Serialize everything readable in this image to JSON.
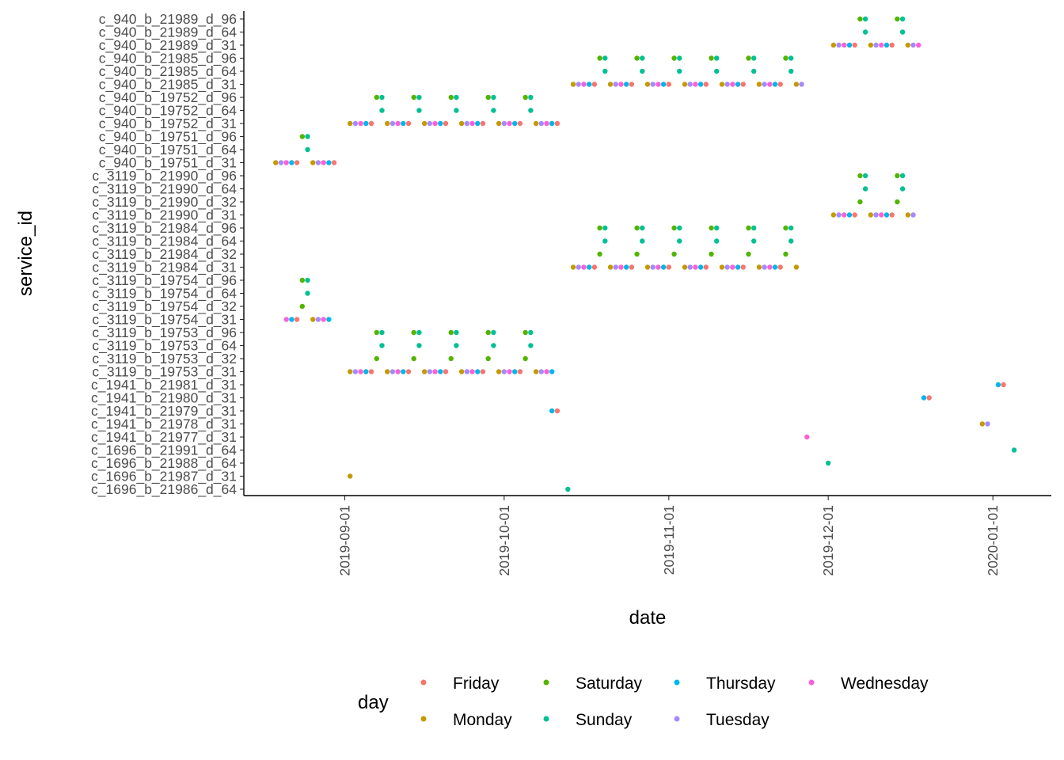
{
  "chart_data": {
    "type": "scatter",
    "xlabel": "date",
    "ylabel": "service_id",
    "x_range": [
      "2019-08-13",
      "2020-01-12"
    ],
    "x_ticks": [
      "2019-09-01",
      "2019-10-01",
      "2019-11-01",
      "2019-12-01",
      "2020-01-01"
    ],
    "grid": false,
    "legend": {
      "title": "day",
      "position": "bottom",
      "entries": [
        "Friday",
        "Monday",
        "Saturday",
        "Sunday",
        "Thursday",
        "Tuesday",
        "Wednesday"
      ]
    },
    "day_colors": {
      "Friday": "#F8766D",
      "Monday": "#C49A00",
      "Saturday": "#53B400",
      "Sunday": "#00C094",
      "Thursday": "#00B6EB",
      "Tuesday": "#A58AFF",
      "Wednesday": "#FB61D7"
    },
    "categories": [
      "c_940_b_21989_d_96",
      "c_940_b_21989_d_64",
      "c_940_b_21989_d_31",
      "c_940_b_21985_d_96",
      "c_940_b_21985_d_64",
      "c_940_b_21985_d_31",
      "c_940_b_19752_d_96",
      "c_940_b_19752_d_64",
      "c_940_b_19752_d_31",
      "c_940_b_19751_d_96",
      "c_940_b_19751_d_64",
      "c_940_b_19751_d_31",
      "c_3119_b_21990_d_96",
      "c_3119_b_21990_d_64",
      "c_3119_b_21990_d_32",
      "c_3119_b_21990_d_31",
      "c_3119_b_21984_d_96",
      "c_3119_b_21984_d_64",
      "c_3119_b_21984_d_32",
      "c_3119_b_21984_d_31",
      "c_3119_b_19754_d_96",
      "c_3119_b_19754_d_64",
      "c_3119_b_19754_d_32",
      "c_3119_b_19754_d_31",
      "c_3119_b_19753_d_96",
      "c_3119_b_19753_d_64",
      "c_3119_b_19753_d_32",
      "c_3119_b_19753_d_31",
      "c_1941_b_21981_d_31",
      "c_1941_b_21980_d_31",
      "c_1941_b_21979_d_31",
      "c_1941_b_21978_d_31",
      "c_1941_b_21977_d_31",
      "c_1696_b_21991_d_64",
      "c_1696_b_21988_d_64",
      "c_1696_b_21987_d_31",
      "c_1696_b_21986_d_64"
    ],
    "series": [
      {
        "service_id": "c_940_b_19751_d_31",
        "date_ranges": [
          [
            "2019-08-19",
            "2019-08-23"
          ],
          [
            "2019-08-26",
            "2019-08-30"
          ]
        ]
      },
      {
        "service_id": "c_940_b_19751_d_64",
        "date_ranges": [
          [
            "2019-08-25",
            "2019-08-25"
          ]
        ]
      },
      {
        "service_id": "c_940_b_19751_d_96",
        "date_ranges": [
          [
            "2019-08-24",
            "2019-08-25"
          ]
        ]
      },
      {
        "service_id": "c_940_b_19752_d_31",
        "date_ranges": [
          [
            "2019-09-02",
            "2019-09-06"
          ],
          [
            "2019-09-09",
            "2019-09-13"
          ],
          [
            "2019-09-16",
            "2019-09-20"
          ],
          [
            "2019-09-23",
            "2019-09-27"
          ],
          [
            "2019-09-30",
            "2019-10-04"
          ],
          [
            "2019-10-07",
            "2019-10-11"
          ]
        ]
      },
      {
        "service_id": "c_940_b_19752_d_64",
        "date_ranges": [
          [
            "2019-09-08",
            "2019-09-08"
          ],
          [
            "2019-09-15",
            "2019-09-15"
          ],
          [
            "2019-09-22",
            "2019-09-22"
          ],
          [
            "2019-09-29",
            "2019-09-29"
          ],
          [
            "2019-10-06",
            "2019-10-06"
          ]
        ]
      },
      {
        "service_id": "c_940_b_19752_d_96",
        "date_ranges": [
          [
            "2019-09-07",
            "2019-09-08"
          ],
          [
            "2019-09-14",
            "2019-09-15"
          ],
          [
            "2019-09-21",
            "2019-09-22"
          ],
          [
            "2019-09-28",
            "2019-09-29"
          ],
          [
            "2019-10-05",
            "2019-10-06"
          ]
        ]
      },
      {
        "service_id": "c_940_b_21985_d_31",
        "date_ranges": [
          [
            "2019-10-14",
            "2019-10-18"
          ],
          [
            "2019-10-21",
            "2019-10-25"
          ],
          [
            "2019-10-28",
            "2019-11-01"
          ],
          [
            "2019-11-04",
            "2019-11-08"
          ],
          [
            "2019-11-11",
            "2019-11-15"
          ],
          [
            "2019-11-18",
            "2019-11-22"
          ],
          [
            "2019-11-25",
            "2019-11-26"
          ]
        ]
      },
      {
        "service_id": "c_940_b_21985_d_64",
        "date_ranges": [
          [
            "2019-10-20",
            "2019-10-20"
          ],
          [
            "2019-10-27",
            "2019-10-27"
          ],
          [
            "2019-11-03",
            "2019-11-03"
          ],
          [
            "2019-11-10",
            "2019-11-10"
          ],
          [
            "2019-11-17",
            "2019-11-17"
          ],
          [
            "2019-11-24",
            "2019-11-24"
          ]
        ]
      },
      {
        "service_id": "c_940_b_21985_d_96",
        "date_ranges": [
          [
            "2019-10-19",
            "2019-10-20"
          ],
          [
            "2019-10-26",
            "2019-10-27"
          ],
          [
            "2019-11-02",
            "2019-11-03"
          ],
          [
            "2019-11-09",
            "2019-11-10"
          ],
          [
            "2019-11-16",
            "2019-11-17"
          ],
          [
            "2019-11-23",
            "2019-11-24"
          ]
        ]
      },
      {
        "service_id": "c_940_b_21989_d_31",
        "date_ranges": [
          [
            "2019-12-02",
            "2019-12-06"
          ],
          [
            "2019-12-09",
            "2019-12-13"
          ],
          [
            "2019-12-16",
            "2019-12-18"
          ]
        ]
      },
      {
        "service_id": "c_940_b_21989_d_64",
        "date_ranges": [
          [
            "2019-12-08",
            "2019-12-08"
          ],
          [
            "2019-12-15",
            "2019-12-15"
          ]
        ]
      },
      {
        "service_id": "c_940_b_21989_d_96",
        "date_ranges": [
          [
            "2019-12-07",
            "2019-12-08"
          ],
          [
            "2019-12-14",
            "2019-12-15"
          ]
        ]
      },
      {
        "service_id": "c_3119_b_19753_d_31",
        "date_ranges": [
          [
            "2019-09-02",
            "2019-09-06"
          ],
          [
            "2019-09-09",
            "2019-09-13"
          ],
          [
            "2019-09-16",
            "2019-09-20"
          ],
          [
            "2019-09-23",
            "2019-09-27"
          ],
          [
            "2019-09-30",
            "2019-10-04"
          ],
          [
            "2019-10-07",
            "2019-10-10"
          ]
        ]
      },
      {
        "service_id": "c_3119_b_19753_d_32",
        "date_ranges": [
          [
            "2019-09-07",
            "2019-09-07"
          ],
          [
            "2019-09-14",
            "2019-09-14"
          ],
          [
            "2019-09-21",
            "2019-09-21"
          ],
          [
            "2019-09-28",
            "2019-09-28"
          ],
          [
            "2019-10-05",
            "2019-10-05"
          ]
        ]
      },
      {
        "service_id": "c_3119_b_19753_d_64",
        "date_ranges": [
          [
            "2019-09-08",
            "2019-09-08"
          ],
          [
            "2019-09-15",
            "2019-09-15"
          ],
          [
            "2019-09-22",
            "2019-09-22"
          ],
          [
            "2019-09-29",
            "2019-09-29"
          ],
          [
            "2019-10-06",
            "2019-10-06"
          ]
        ]
      },
      {
        "service_id": "c_3119_b_19753_d_96",
        "date_ranges": [
          [
            "2019-09-07",
            "2019-09-08"
          ],
          [
            "2019-09-14",
            "2019-09-15"
          ],
          [
            "2019-09-21",
            "2019-09-22"
          ],
          [
            "2019-09-28",
            "2019-09-29"
          ],
          [
            "2019-10-05",
            "2019-10-06"
          ]
        ]
      },
      {
        "service_id": "c_3119_b_19754_d_31",
        "date_ranges": [
          [
            "2019-08-21",
            "2019-08-23"
          ],
          [
            "2019-08-26",
            "2019-08-29"
          ]
        ]
      },
      {
        "service_id": "c_3119_b_19754_d_32",
        "date_ranges": [
          [
            "2019-08-24",
            "2019-08-24"
          ]
        ]
      },
      {
        "service_id": "c_3119_b_19754_d_64",
        "date_ranges": [
          [
            "2019-08-25",
            "2019-08-25"
          ]
        ]
      },
      {
        "service_id": "c_3119_b_19754_d_96",
        "date_ranges": [
          [
            "2019-08-24",
            "2019-08-25"
          ]
        ]
      },
      {
        "service_id": "c_3119_b_21984_d_31",
        "date_ranges": [
          [
            "2019-10-14",
            "2019-10-18"
          ],
          [
            "2019-10-21",
            "2019-10-25"
          ],
          [
            "2019-10-28",
            "2019-11-01"
          ],
          [
            "2019-11-04",
            "2019-11-08"
          ],
          [
            "2019-11-11",
            "2019-11-15"
          ],
          [
            "2019-11-18",
            "2019-11-22"
          ],
          [
            "2019-11-25",
            "2019-11-25"
          ]
        ]
      },
      {
        "service_id": "c_3119_b_21984_d_32",
        "date_ranges": [
          [
            "2019-10-19",
            "2019-10-19"
          ],
          [
            "2019-10-26",
            "2019-10-26"
          ],
          [
            "2019-11-02",
            "2019-11-02"
          ],
          [
            "2019-11-09",
            "2019-11-09"
          ],
          [
            "2019-11-16",
            "2019-11-16"
          ],
          [
            "2019-11-23",
            "2019-11-23"
          ]
        ]
      },
      {
        "service_id": "c_3119_b_21984_d_64",
        "date_ranges": [
          [
            "2019-10-20",
            "2019-10-20"
          ],
          [
            "2019-10-27",
            "2019-10-27"
          ],
          [
            "2019-11-03",
            "2019-11-03"
          ],
          [
            "2019-11-10",
            "2019-11-10"
          ],
          [
            "2019-11-17",
            "2019-11-17"
          ],
          [
            "2019-11-24",
            "2019-11-24"
          ]
        ]
      },
      {
        "service_id": "c_3119_b_21984_d_96",
        "date_ranges": [
          [
            "2019-10-19",
            "2019-10-20"
          ],
          [
            "2019-10-26",
            "2019-10-27"
          ],
          [
            "2019-11-02",
            "2019-11-03"
          ],
          [
            "2019-11-09",
            "2019-11-10"
          ],
          [
            "2019-11-16",
            "2019-11-17"
          ],
          [
            "2019-11-23",
            "2019-11-24"
          ]
        ]
      },
      {
        "service_id": "c_3119_b_21990_d_31",
        "date_ranges": [
          [
            "2019-12-02",
            "2019-12-06"
          ],
          [
            "2019-12-09",
            "2019-12-13"
          ],
          [
            "2019-12-16",
            "2019-12-17"
          ]
        ]
      },
      {
        "service_id": "c_3119_b_21990_d_32",
        "date_ranges": [
          [
            "2019-12-07",
            "2019-12-07"
          ],
          [
            "2019-12-14",
            "2019-12-14"
          ]
        ]
      },
      {
        "service_id": "c_3119_b_21990_d_64",
        "date_ranges": [
          [
            "2019-12-08",
            "2019-12-08"
          ],
          [
            "2019-12-15",
            "2019-12-15"
          ]
        ]
      },
      {
        "service_id": "c_3119_b_21990_d_96",
        "date_ranges": [
          [
            "2019-12-07",
            "2019-12-08"
          ],
          [
            "2019-12-14",
            "2019-12-15"
          ]
        ]
      },
      {
        "service_id": "c_1941_b_21981_d_31",
        "date_ranges": [
          [
            "2020-01-02",
            "2020-01-03"
          ]
        ]
      },
      {
        "service_id": "c_1941_b_21980_d_31",
        "date_ranges": [
          [
            "2019-12-19",
            "2019-12-20"
          ]
        ]
      },
      {
        "service_id": "c_1941_b_21979_d_31",
        "date_ranges": [
          [
            "2019-10-10",
            "2019-10-11"
          ]
        ]
      },
      {
        "service_id": "c_1941_b_21978_d_31",
        "date_ranges": [
          [
            "2019-12-30",
            "2019-12-31"
          ]
        ]
      },
      {
        "service_id": "c_1941_b_21977_d_31",
        "date_ranges": [
          [
            "2019-11-27",
            "2019-11-27"
          ]
        ]
      },
      {
        "service_id": "c_1696_b_21991_d_64",
        "date_ranges": [
          [
            "2020-01-05",
            "2020-01-05"
          ]
        ]
      },
      {
        "service_id": "c_1696_b_21988_d_64",
        "date_ranges": [
          [
            "2019-12-01",
            "2019-12-01"
          ]
        ]
      },
      {
        "service_id": "c_1696_b_21987_d_31",
        "date_ranges": [
          [
            "2019-09-02",
            "2019-09-02"
          ]
        ]
      },
      {
        "service_id": "c_1696_b_21986_d_64",
        "date_ranges": [
          [
            "2019-10-13",
            "2019-10-13"
          ]
        ]
      }
    ]
  }
}
